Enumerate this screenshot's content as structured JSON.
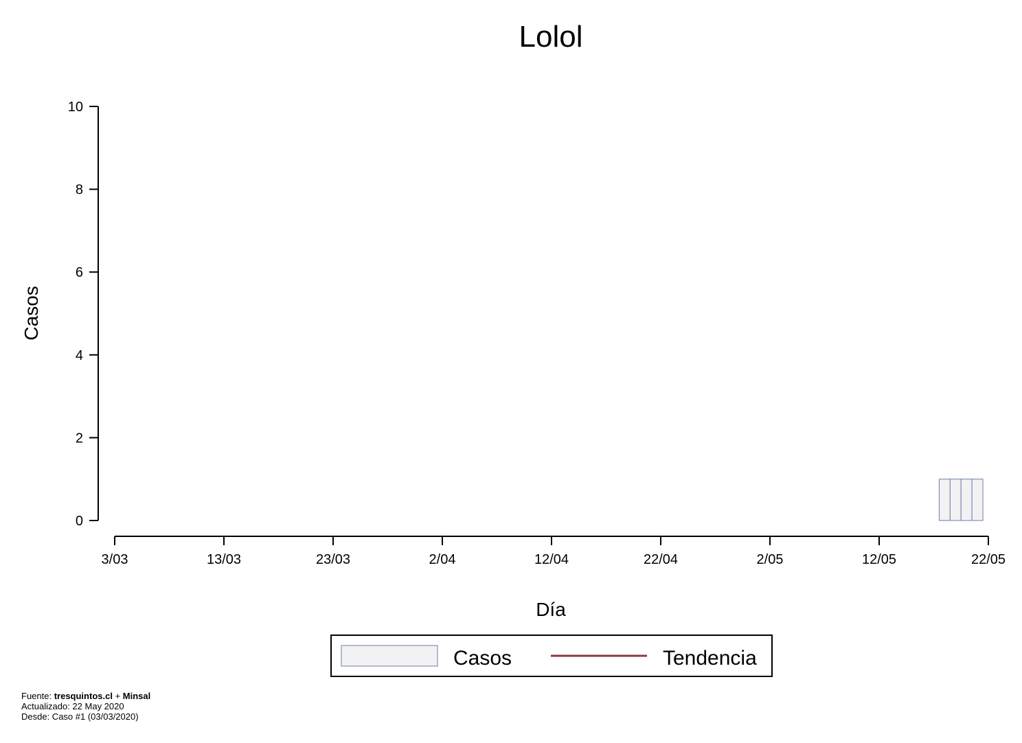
{
  "chart_data": {
    "type": "bar",
    "title": "Lolol",
    "xlabel": "Día",
    "ylabel": "Casos",
    "ylim": [
      0,
      10
    ],
    "yticks": [
      0,
      2,
      4,
      6,
      8,
      10
    ],
    "xlim": [
      "2020-03-03",
      "2020-05-22"
    ],
    "xticks": [
      {
        "date": "2020-03-03",
        "label": "3/03"
      },
      {
        "date": "2020-03-13",
        "label": "13/03"
      },
      {
        "date": "2020-03-23",
        "label": "23/03"
      },
      {
        "date": "2020-04-02",
        "label": "2/04"
      },
      {
        "date": "2020-04-12",
        "label": "12/04"
      },
      {
        "date": "2020-04-22",
        "label": "22/04"
      },
      {
        "date": "2020-05-02",
        "label": "2/05"
      },
      {
        "date": "2020-05-12",
        "label": "12/05"
      },
      {
        "date": "2020-05-22",
        "label": "22/05"
      }
    ],
    "series": [
      {
        "name": "Casos",
        "color": "#f2f2f2",
        "stroke": "#6b7fa8",
        "points": [
          {
            "date": "2020-05-18",
            "value": 1
          },
          {
            "date": "2020-05-19",
            "value": 1
          },
          {
            "date": "2020-05-20",
            "value": 1
          },
          {
            "date": "2020-05-21",
            "value": 1
          }
        ]
      },
      {
        "name": "Tendencia",
        "color": "#8b3a3a",
        "points": []
      }
    ],
    "legend": {
      "position": "bottom",
      "items": [
        "Casos",
        "Tendencia"
      ]
    },
    "grid": false
  },
  "footer": {
    "source_prefix": "Fuente: ",
    "source_1": "tresquintos.cl",
    "source_sep": " + ",
    "source_2": "Minsal",
    "updated": "Actualizado: 22 May 2020",
    "since": "Desde: Caso #1  (03/03/2020)"
  }
}
